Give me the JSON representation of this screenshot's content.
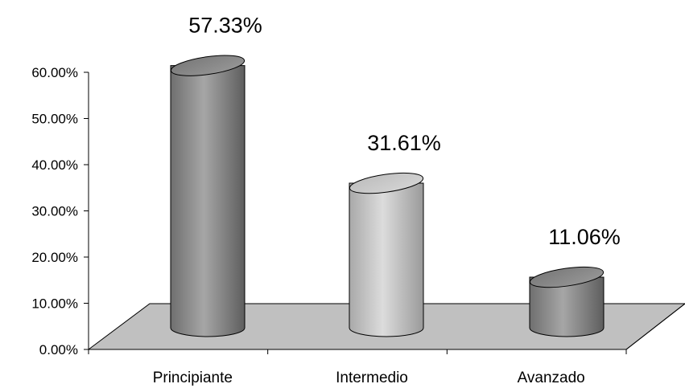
{
  "chart_data": {
    "type": "bar",
    "style": "3d-cylinder",
    "categories": [
      "Principiante",
      "Intermedio",
      "Avanzado"
    ],
    "values": [
      57.33,
      31.61,
      11.06
    ],
    "data_labels": [
      "57.33%",
      "31.61%",
      "11.06%"
    ],
    "yticks": [
      "0.00%",
      "10.00%",
      "20.00%",
      "30.00%",
      "40.00%",
      "50.00%",
      "60.00%"
    ],
    "ylim": [
      0,
      60
    ],
    "grid": false,
    "legend": "none",
    "colors": {
      "bar_dark": "#8c8c8c",
      "bar_light": "#c8c8c8",
      "floor": "#c0c0c0",
      "axis": "#000000"
    }
  }
}
